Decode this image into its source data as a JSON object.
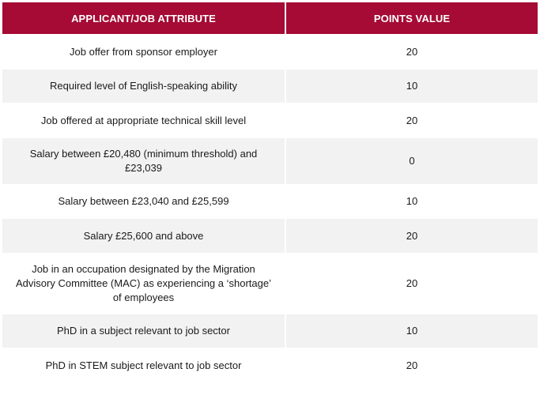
{
  "table": {
    "headers": {
      "attribute": "APPLICANT/JOB ATTRIBUTE",
      "points": "POINTS VALUE"
    },
    "rows": [
      {
        "attribute": "Job offer from sponsor employer",
        "points": "20"
      },
      {
        "attribute": "Required level of English-speaking ability",
        "points": "10"
      },
      {
        "attribute": "Job offered at appropriate technical skill level",
        "points": "20"
      },
      {
        "attribute": "Salary between £20,480 (minimum threshold) and £23,039",
        "points": "0"
      },
      {
        "attribute": "Salary between £23,040 and £25,599",
        "points": "10"
      },
      {
        "attribute": "Salary £25,600 and above",
        "points": "20"
      },
      {
        "attribute": "Job in an occupation designated by the Migration Advisory Committee (MAC) as experiencing a ‘shortage’ of employees",
        "points": "20"
      },
      {
        "attribute": "PhD in a subject relevant to job sector",
        "points": "10"
      },
      {
        "attribute": "PhD in STEM subject relevant to job sector",
        "points": "20"
      }
    ]
  },
  "colors": {
    "header_bg": "#a50b35",
    "header_text": "#ffffff",
    "stripe_bg": "#f2f2f2"
  }
}
